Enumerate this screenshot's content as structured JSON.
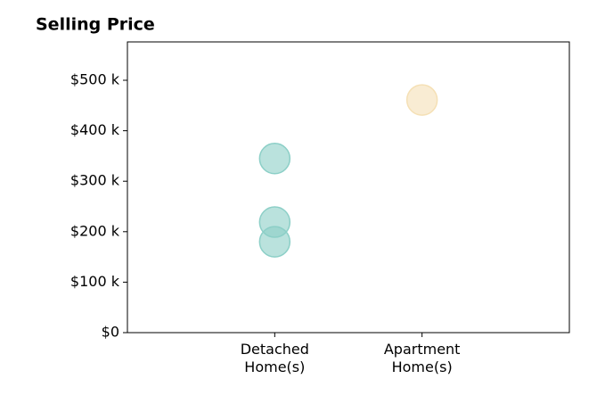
{
  "chart_data": {
    "type": "scatter",
    "title": "Selling Price",
    "categories": [
      "Detached Home(s)",
      "Apartment Home(s)"
    ],
    "x": [
      0,
      0,
      0,
      1
    ],
    "values": [
      345000,
      219000,
      180000,
      461000
    ],
    "colors": [
      "#8ccfc7",
      "#8ccfc7",
      "#8ccfc7",
      "#f5e0b5"
    ],
    "xlim": [
      -1,
      2
    ],
    "ylim": [
      0,
      576000
    ],
    "yticks": [
      {
        "value": 0,
        "label": "$0"
      },
      {
        "value": 100000,
        "label": "$100 k"
      },
      {
        "value": 200000,
        "label": "$200 k"
      },
      {
        "value": 300000,
        "label": "$300 k"
      },
      {
        "value": 400000,
        "label": "$400 k"
      },
      {
        "value": 500000,
        "label": "$500 k"
      }
    ],
    "grid": false
  }
}
